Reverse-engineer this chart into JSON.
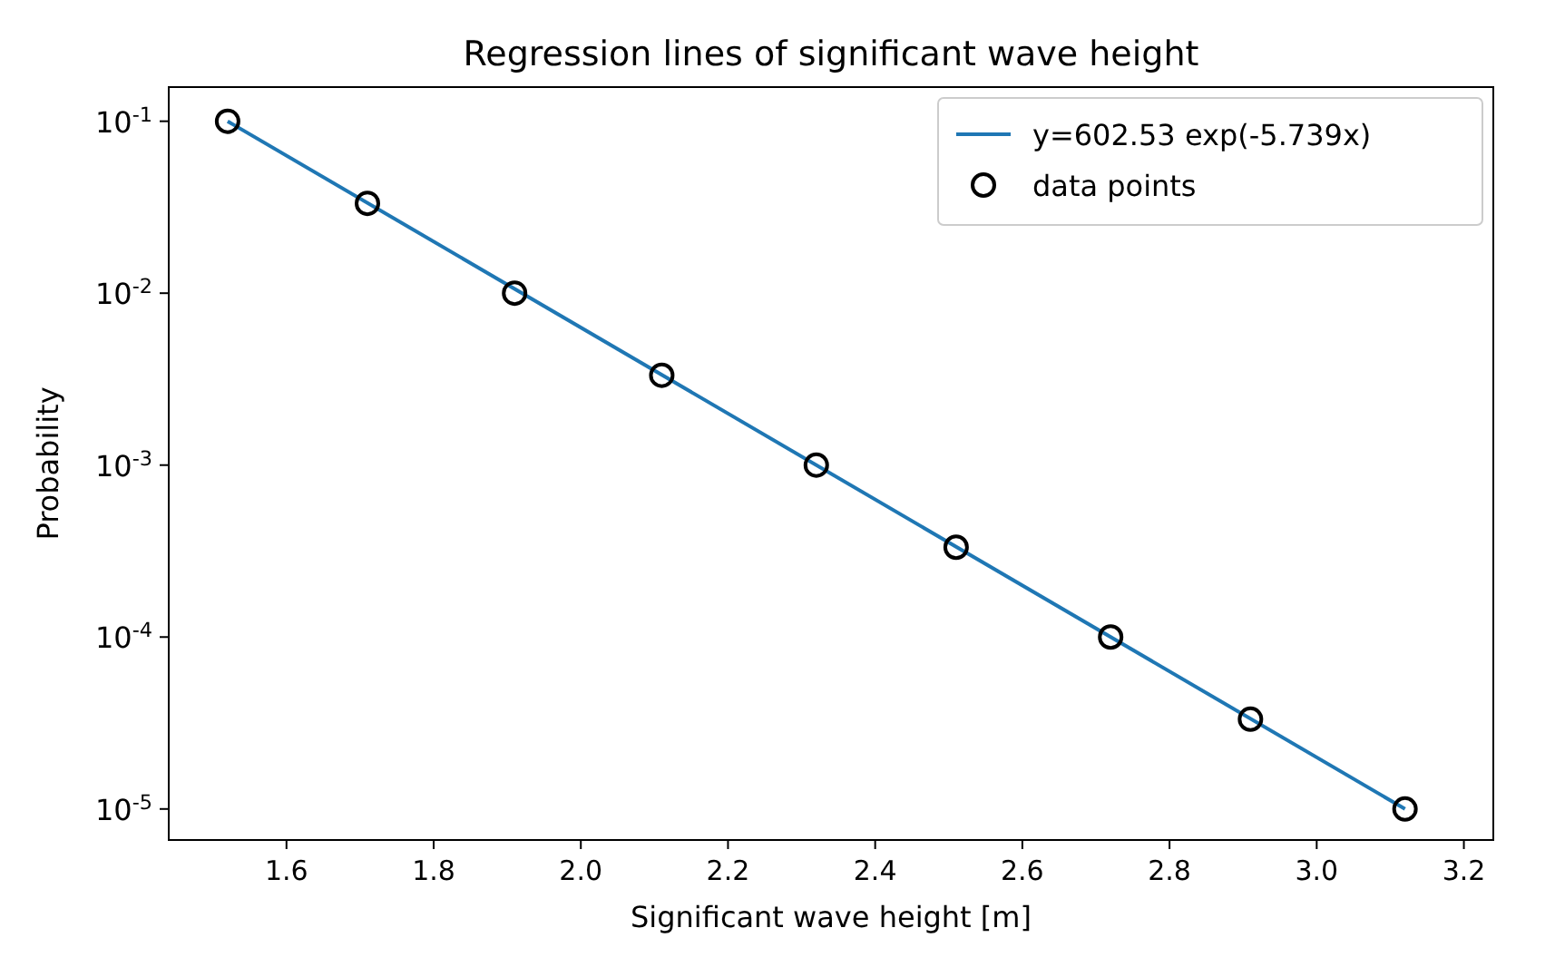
{
  "chart_data": {
    "type": "scatter",
    "title": "Regression lines of significant wave height",
    "xlabel": "Significant wave height [m]",
    "ylabel": "Probability",
    "log": "y",
    "grid": false,
    "legend": "top right",
    "xlim": [
      1.44,
      3.24
    ],
    "xticks": [
      {
        "value": 1.6,
        "label": "1.6"
      },
      {
        "value": 1.8,
        "label": "1.8"
      },
      {
        "value": 2.0,
        "label": "2.0"
      },
      {
        "value": 2.2,
        "label": "2.2"
      },
      {
        "value": 2.4,
        "label": "2.4"
      },
      {
        "value": 2.6,
        "label": "2.6"
      },
      {
        "value": 2.8,
        "label": "2.8"
      },
      {
        "value": 3.0,
        "label": "3.0"
      },
      {
        "value": 3.2,
        "label": "3.2"
      }
    ],
    "ylim": [
      6.6e-06,
      0.158
    ],
    "yticks": [
      {
        "value": 0.1,
        "label": "10$^{-1}$"
      },
      {
        "value": 0.01,
        "label": "10$^{-2}$"
      },
      {
        "value": 0.001,
        "label": "10$^{-3}$"
      },
      {
        "value": 0.0001,
        "label": "10$^{-4}$"
      },
      {
        "value": 1e-05,
        "label": "10$^{-5}$"
      }
    ],
    "series": [
      {
        "type": "line",
        "name": "y=602.53 exp(-5.739x)",
        "color": "#1f77b4",
        "line_style": "solid",
        "x": [
          1.52,
          3.12
        ],
        "values": [
          0.1,
          1e-05
        ]
      },
      {
        "name": "data points",
        "color": "#000000",
        "marker": "circle",
        "x": [
          1.52,
          1.71,
          1.91,
          2.11,
          2.32,
          2.51,
          2.72,
          2.91,
          3.12
        ],
        "values": [
          0.1,
          0.0333,
          0.01,
          0.00333,
          0.001,
          0.000333,
          0.0001,
          3.33e-05,
          1e-05
        ]
      }
    ]
  }
}
